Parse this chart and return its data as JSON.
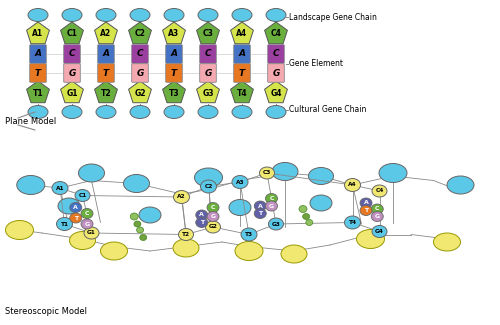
{
  "bg_color": "#ffffff",
  "pent_A_color": "#D4E44A",
  "pent_C_color": "#6AAF3D",
  "pent_T_color": "#6AAF3D",
  "pent_G_color": "#D4E44A",
  "rect_A_color": "#4472C4",
  "rect_C_color": "#9B3FA0",
  "rect_T_color": "#E87722",
  "rect_G_color": "#F4A8B0",
  "ell_color": "#5BC8E8",
  "labels_top": [
    "A1",
    "C1",
    "A2",
    "C2",
    "A3",
    "C3",
    "A4",
    "C4"
  ],
  "labels_bot": [
    "T1",
    "G1",
    "T2",
    "G2",
    "T3",
    "G3",
    "T4",
    "G4"
  ],
  "inner_top": [
    "A",
    "C",
    "A",
    "C",
    "A",
    "C",
    "A",
    "C"
  ],
  "inner_bot": [
    "T",
    "G",
    "T",
    "G",
    "T",
    "G",
    "T",
    "G"
  ],
  "plane_model_label": "Plane Model",
  "landscape_label": "Landscape Gene Chain",
  "cultural_label": "Cultural Gene Chain",
  "gene_element_label": "Gene Element",
  "stereo_label": "Stereoscopic Model"
}
